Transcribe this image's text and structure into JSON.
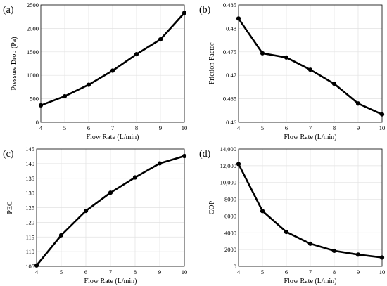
{
  "chart_data": [
    {
      "type": "line",
      "panel_label": "(a)",
      "xlabel": "Flow Rate (L/min)",
      "ylabel": "Pressure Drop (Pa)",
      "x": [
        4,
        5,
        6,
        7,
        8,
        9,
        10
      ],
      "y": [
        360,
        555,
        800,
        1100,
        1450,
        1765,
        2330
      ],
      "xlim": [
        4,
        10
      ],
      "ylim": [
        0,
        2500
      ],
      "xticks": [
        "4",
        "5",
        "6",
        "7",
        "8",
        "9",
        "10"
      ],
      "yticks": [
        "0",
        "500",
        "1000",
        "1500",
        "2000",
        "2500"
      ],
      "ytick_values": [
        0,
        500,
        1000,
        1500,
        2000,
        2500
      ],
      "grid": true,
      "color": "#000000"
    },
    {
      "type": "line",
      "panel_label": "(b)",
      "xlabel": "Flow Rate (L/min)",
      "ylabel": "Friction Factor",
      "x": [
        4,
        5,
        6,
        7,
        8,
        9,
        10
      ],
      "y": [
        0.4821,
        0.4747,
        0.4738,
        0.4712,
        0.4682,
        0.464,
        0.4617
      ],
      "xlim": [
        4,
        10
      ],
      "ylim": [
        0.46,
        0.485
      ],
      "xticks": [
        "4",
        "5",
        "6",
        "7",
        "8",
        "9",
        "10"
      ],
      "yticks": [
        "0.46",
        "0.465",
        "0.47",
        "0.475",
        "0.48",
        "0.485"
      ],
      "ytick_values": [
        0.46,
        0.465,
        0.47,
        0.475,
        0.48,
        0.485
      ],
      "grid": true,
      "color": "#000000"
    },
    {
      "type": "line",
      "panel_label": "(c)",
      "xlabel": "Flow Rate (L/min)",
      "ylabel": "PEC",
      "x": [
        4,
        5,
        6,
        7,
        8,
        9,
        10
      ],
      "y": [
        105.3,
        115.6,
        123.9,
        130.1,
        135.3,
        140.1,
        142.6
      ],
      "xlim": [
        4,
        10
      ],
      "ylim": [
        105,
        145
      ],
      "xticks": [
        "4",
        "5",
        "6",
        "7",
        "8",
        "9",
        "10"
      ],
      "yticks": [
        "105",
        "110",
        "115",
        "120",
        "125",
        "130",
        "135",
        "140",
        "145"
      ],
      "ytick_values": [
        105,
        110,
        115,
        120,
        125,
        130,
        135,
        140,
        145
      ],
      "grid": true,
      "color": "#000000"
    },
    {
      "type": "line",
      "panel_label": "(d)",
      "xlabel": "Flow Rate (L/min)",
      "ylabel": "COP",
      "x": [
        4,
        5,
        6,
        7,
        8,
        9,
        10
      ],
      "y": [
        12200,
        6600,
        4100,
        2700,
        1850,
        1400,
        1050
      ],
      "xlim": [
        4,
        10
      ],
      "ylim": [
        0,
        14000
      ],
      "xticks": [
        "4",
        "5",
        "6",
        "7",
        "8",
        "9",
        "10"
      ],
      "yticks": [
        "0",
        "2000",
        "4000",
        "6000",
        "8000",
        "10,000",
        "12,000",
        "14,000"
      ],
      "ytick_values": [
        0,
        2000,
        4000,
        6000,
        8000,
        10000,
        12000,
        14000
      ],
      "grid": true,
      "color": "#000000"
    }
  ]
}
